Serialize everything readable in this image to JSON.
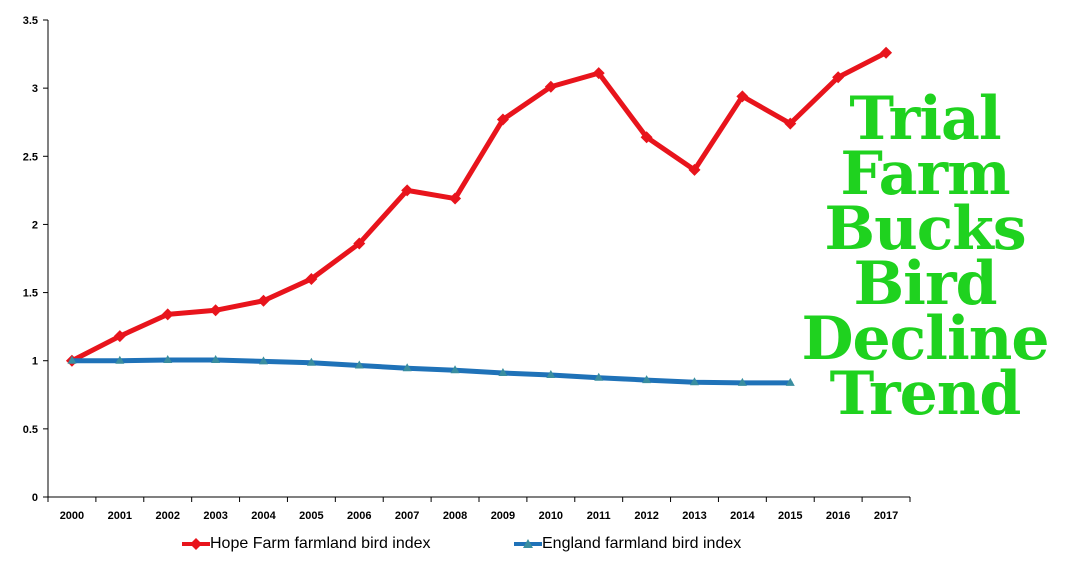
{
  "chart_data": {
    "type": "line",
    "categories": [
      "2000",
      "2001",
      "2002",
      "2003",
      "2004",
      "2005",
      "2006",
      "2007",
      "2008",
      "2009",
      "2010",
      "2011",
      "2012",
      "2013",
      "2014",
      "2015",
      "2016",
      "2017"
    ],
    "y_ticks": [
      "0",
      "0.5",
      "1",
      "1.5",
      "2",
      "2.5",
      "3",
      "3.5"
    ],
    "ylim": [
      0,
      3.5
    ],
    "grid": false,
    "legend_position": "bottom",
    "series": [
      {
        "name": "Hope Farm farmland bird index",
        "color": "#e8141c",
        "marker": "diamond",
        "values": [
          1.0,
          1.18,
          1.34,
          1.37,
          1.44,
          1.6,
          1.86,
          2.25,
          2.19,
          2.77,
          3.01,
          3.11,
          2.64,
          2.4,
          2.94,
          2.74,
          3.08,
          3.26
        ]
      },
      {
        "name": "England farmland bird index",
        "color": "#1f72b8",
        "marker": "triangle",
        "values": [
          1.0,
          1.0,
          1.005,
          1.005,
          0.995,
          0.985,
          0.965,
          0.945,
          0.93,
          0.91,
          0.895,
          0.875,
          0.858,
          0.842,
          0.837,
          0.837,
          null,
          null
        ]
      }
    ]
  },
  "headline": {
    "lines": [
      "Trial",
      "Farm",
      "Bucks",
      "Bird",
      "Decline",
      "Trend"
    ],
    "color": "#1fd21f"
  }
}
